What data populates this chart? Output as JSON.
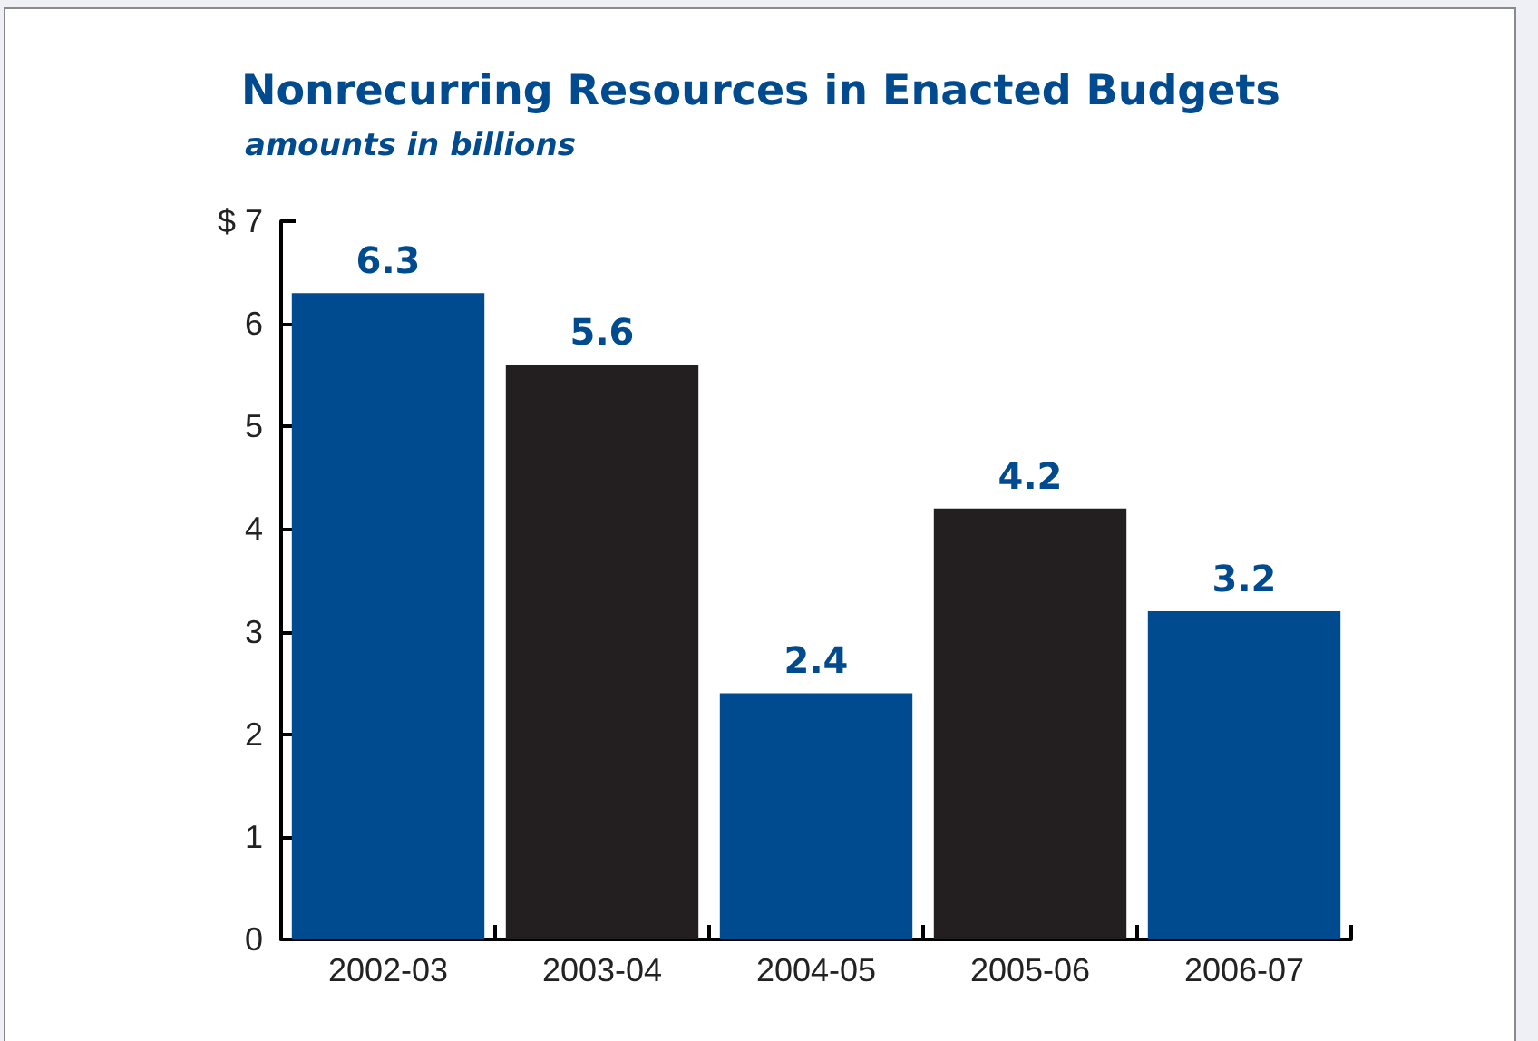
{
  "chart_data": {
    "type": "bar",
    "title": "Nonrecurring Resources in Enacted Budgets",
    "subtitle": "amounts in billions",
    "categories": [
      "2002-03",
      "2003-04",
      "2004-05",
      "2005-06",
      "2006-07"
    ],
    "values": [
      6.3,
      5.6,
      2.4,
      4.2,
      3.2
    ],
    "colors": [
      "#004a8f",
      "#231f20",
      "#004a8f",
      "#231f20",
      "#004a8f"
    ],
    "ylim": [
      0,
      7
    ],
    "yticks": [
      0,
      1,
      2,
      3,
      4,
      5,
      6,
      {
        "value": 7,
        "label": "$ 7"
      }
    ],
    "grid": false,
    "data_labels": true
  }
}
